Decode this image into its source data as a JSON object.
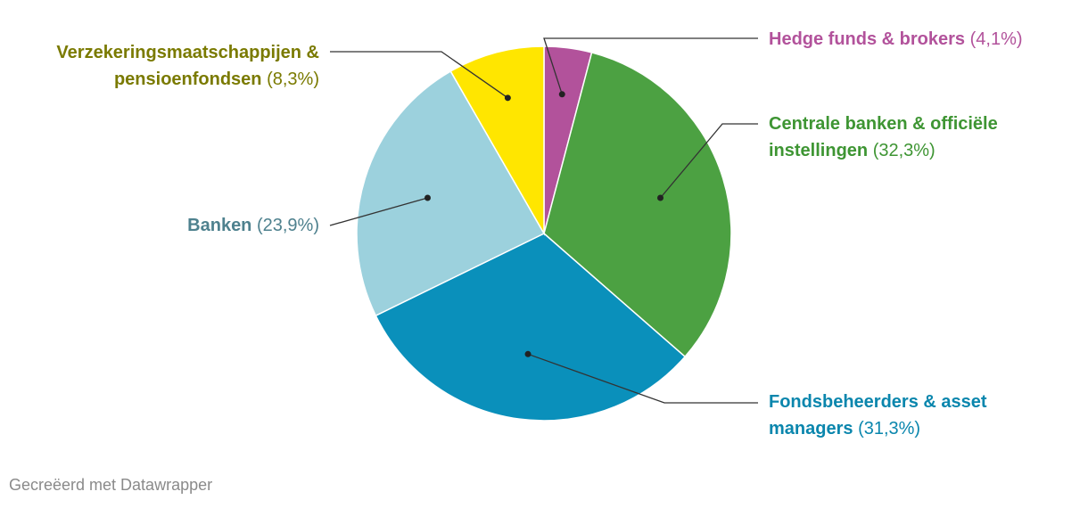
{
  "chart_data": {
    "type": "pie",
    "slices": [
      {
        "label": "Hedge funds & brokers",
        "value": 4.1,
        "display": "(4,1%)",
        "color": "#b2529b",
        "label_color": "#b2529b"
      },
      {
        "label": "Centrale banken & officiële instellingen",
        "value": 32.3,
        "display": "(32,3%)",
        "color": "#4ca142",
        "label_color": "#3e9533"
      },
      {
        "label": "Fondsbeheerders & asset managers",
        "value": 31.3,
        "display": "(31,3%)",
        "color": "#0a90bb",
        "label_color": "#0a86ad"
      },
      {
        "label": "Banken",
        "value": 23.9,
        "display": "(23,9%)",
        "color": "#9cd1dd",
        "label_color": "#4e818e"
      },
      {
        "label": "Verzekeringsmaatschappijen & pensioenfondsen",
        "value": 8.3,
        "display": "(8,3%)",
        "color": "#ffe600",
        "label_color": "#7a7a00"
      }
    ],
    "start_angle_deg": 0,
    "direction": "clockwise"
  },
  "footer": {
    "credit": "Gecreëerd met Datawrapper"
  }
}
